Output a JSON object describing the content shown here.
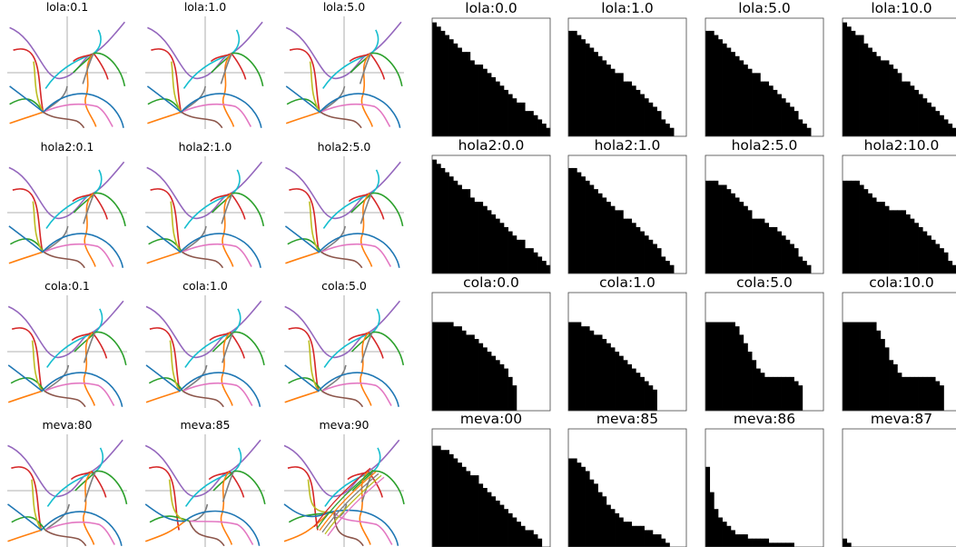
{
  "figure": {
    "left_panels_title_grid": [
      [
        "lola:0.1",
        "lola:1.0",
        "lola:5.0"
      ],
      [
        "hola2:0.1",
        "hola2:1.0",
        "hola2:5.0"
      ],
      [
        "cola:0.1",
        "cola:1.0",
        "cola:5.0"
      ],
      [
        "meva:80",
        "meva:85",
        "meva:90"
      ]
    ],
    "right_panels_title_grid": [
      [
        "lola:0.0",
        "lola:1.0",
        "lola:5.0",
        "lola:10.0"
      ],
      [
        "hola2:0.0",
        "hola2:1.0",
        "hola2:5.0",
        "hola2:10.0"
      ],
      [
        "cola:0.0",
        "cola:1.0",
        "cola:5.0",
        "cola:10.0"
      ],
      [
        "meva:00",
        "meva:85",
        "meva:86",
        "meva:87"
      ]
    ]
  },
  "chart_data": [
    {
      "type": "line",
      "panel_group": "trajectory_plots",
      "titles": [
        "lola:0.1",
        "lola:1.0",
        "lola:5.0",
        "hola2:0.1",
        "hola2:1.0",
        "hola2:5.0",
        "cola:0.1",
        "cola:1.0",
        "cola:5.0",
        "meva:80",
        "meva:85",
        "meva:90"
      ],
      "axes": "centered cross, no ticks",
      "series_colors": [
        "#9467bd",
        "#17becf",
        "#d62728",
        "#2ca02c",
        "#ff7f0e",
        "#7f7f7f",
        "#bcbd22",
        "#e377c2",
        "#1f77b4",
        "#8c564b"
      ]
    },
    {
      "type": "heatmap",
      "panel_group": "binary_region_plots",
      "grid_size": 28,
      "colors": {
        "filled": "#000000",
        "empty": "#ffffff"
      },
      "panels": [
        {
          "title": "lola:0.0",
          "profile": [
            0.97,
            0.94,
            0.9,
            0.86,
            0.82,
            0.79,
            0.76,
            0.73,
            0.7,
            0.66,
            0.62,
            0.59,
            0.56,
            0.53,
            0.5,
            0.46,
            0.43,
            0.4,
            0.36,
            0.33,
            0.3,
            0.27,
            0.23,
            0.2,
            0.17,
            0.13,
            0.1,
            0.06
          ]
        },
        {
          "title": "lola:1.0",
          "profile": [
            0.9,
            0.88,
            0.85,
            0.82,
            0.79,
            0.76,
            0.72,
            0.68,
            0.65,
            0.62,
            0.58,
            0.55,
            0.52,
            0.48,
            0.45,
            0.42,
            0.38,
            0.35,
            0.31,
            0.28,
            0.24,
            0.2,
            0.16,
            0.12,
            0.08,
            0.0,
            0.0,
            0.0
          ]
        },
        {
          "title": "lola:5.0",
          "profile": [
            0.9,
            0.88,
            0.85,
            0.82,
            0.78,
            0.75,
            0.72,
            0.68,
            0.65,
            0.62,
            0.58,
            0.55,
            0.52,
            0.48,
            0.45,
            0.42,
            0.38,
            0.35,
            0.31,
            0.28,
            0.24,
            0.2,
            0.16,
            0.12,
            0.08,
            0.0,
            0.0,
            0.0
          ]
        },
        {
          "title": "lola:10.0",
          "profile": [
            0.97,
            0.94,
            0.91,
            0.87,
            0.84,
            0.8,
            0.76,
            0.72,
            0.69,
            0.66,
            0.63,
            0.59,
            0.56,
            0.52,
            0.48,
            0.45,
            0.42,
            0.38,
            0.35,
            0.32,
            0.28,
            0.25,
            0.21,
            0.18,
            0.14,
            0.11,
            0.07,
            0.04
          ]
        },
        {
          "title": "hola2:0.0",
          "profile": [
            0.97,
            0.94,
            0.9,
            0.86,
            0.82,
            0.79,
            0.76,
            0.73,
            0.7,
            0.66,
            0.62,
            0.59,
            0.56,
            0.53,
            0.5,
            0.46,
            0.43,
            0.4,
            0.36,
            0.33,
            0.3,
            0.27,
            0.23,
            0.2,
            0.17,
            0.13,
            0.1,
            0.06
          ]
        },
        {
          "title": "hola2:1.0",
          "profile": [
            0.9,
            0.88,
            0.85,
            0.82,
            0.79,
            0.76,
            0.72,
            0.68,
            0.65,
            0.62,
            0.58,
            0.55,
            0.52,
            0.48,
            0.45,
            0.42,
            0.38,
            0.35,
            0.31,
            0.28,
            0.24,
            0.2,
            0.16,
            0.12,
            0.08,
            0.0,
            0.0,
            0.0
          ]
        },
        {
          "title": "hola2:5.0",
          "profile": [
            0.78,
            0.78,
            0.78,
            0.76,
            0.74,
            0.72,
            0.69,
            0.66,
            0.62,
            0.58,
            0.53,
            0.48,
            0.47,
            0.45,
            0.43,
            0.41,
            0.38,
            0.35,
            0.32,
            0.29,
            0.25,
            0.21,
            0.16,
            0.12,
            0.08,
            0.0,
            0.0,
            0.0
          ]
        },
        {
          "title": "hola2:10.0",
          "profile": [
            0.8,
            0.8,
            0.8,
            0.78,
            0.76,
            0.72,
            0.68,
            0.64,
            0.62,
            0.6,
            0.56,
            0.52,
            0.52,
            0.52,
            0.52,
            0.5,
            0.48,
            0.44,
            0.4,
            0.36,
            0.32,
            0.28,
            0.24,
            0.2,
            0.17,
            0.12,
            0.08,
            0.04
          ]
        },
        {
          "title": "cola:0.0",
          "profile": [
            0.75,
            0.75,
            0.75,
            0.75,
            0.74,
            0.72,
            0.7,
            0.68,
            0.66,
            0.64,
            0.61,
            0.58,
            0.55,
            0.51,
            0.47,
            0.43,
            0.39,
            0.34,
            0.28,
            0.23,
            0.0,
            0.0,
            0.0,
            0.0,
            0.0,
            0.0,
            0.0,
            0.0
          ]
        },
        {
          "title": "cola:1.0",
          "profile": [
            0.75,
            0.75,
            0.75,
            0.72,
            0.7,
            0.68,
            0.66,
            0.64,
            0.61,
            0.57,
            0.53,
            0.49,
            0.46,
            0.43,
            0.4,
            0.36,
            0.32,
            0.28,
            0.24,
            0.2,
            0.17,
            0.0,
            0.0,
            0.0,
            0.0,
            0.0,
            0.0,
            0.0
          ]
        },
        {
          "title": "cola:5.0",
          "profile": [
            0.76,
            0.76,
            0.76,
            0.76,
            0.76,
            0.76,
            0.74,
            0.7,
            0.66,
            0.58,
            0.5,
            0.42,
            0.36,
            0.32,
            0.3,
            0.3,
            0.3,
            0.3,
            0.3,
            0.3,
            0.28,
            0.25,
            0.22,
            0.0,
            0.0,
            0.0,
            0.0,
            0.0
          ]
        },
        {
          "title": "cola:10.0",
          "profile": [
            0.76,
            0.76,
            0.76,
            0.76,
            0.76,
            0.76,
            0.76,
            0.76,
            0.68,
            0.6,
            0.52,
            0.44,
            0.38,
            0.33,
            0.3,
            0.28,
            0.27,
            0.27,
            0.27,
            0.27,
            0.27,
            0.27,
            0.24,
            0.2,
            0.0,
            0.0,
            0.0,
            0.0
          ]
        },
        {
          "title": "meva:00",
          "profile": [
            0.86,
            0.85,
            0.83,
            0.81,
            0.77,
            0.74,
            0.71,
            0.68,
            0.65,
            0.62,
            0.59,
            0.55,
            0.51,
            0.47,
            0.44,
            0.41,
            0.37,
            0.33,
            0.29,
            0.25,
            0.22,
            0.19,
            0.16,
            0.13,
            0.1,
            0.07,
            0.0,
            0.0
          ]
        },
        {
          "title": "meva:85",
          "profile": [
            0.76,
            0.74,
            0.72,
            0.68,
            0.63,
            0.57,
            0.52,
            0.47,
            0.42,
            0.37,
            0.31,
            0.27,
            0.24,
            0.22,
            0.2,
            0.19,
            0.18,
            0.17,
            0.15,
            0.13,
            0.11,
            0.09,
            0.07,
            0.05,
            0.0,
            0.0,
            0.0,
            0.0
          ]
        },
        {
          "title": "meva:86",
          "profile": [
            0.68,
            0.48,
            0.31,
            0.26,
            0.22,
            0.18,
            0.14,
            0.12,
            0.1,
            0.09,
            0.08,
            0.07,
            0.07,
            0.06,
            0.06,
            0.05,
            0.05,
            0.04,
            0.04,
            0.04,
            0.04,
            0.0,
            0.0,
            0.0,
            0.0,
            0.0,
            0.0,
            0.0
          ]
        },
        {
          "title": "meva:87",
          "profile": [
            0.07,
            0.04,
            0.0,
            0.0,
            0.0,
            0.0,
            0.0,
            0.0,
            0.0,
            0.0,
            0.0,
            0.0,
            0.0,
            0.0,
            0.0,
            0.0,
            0.0,
            0.0,
            0.0,
            0.0,
            0.0,
            0.0,
            0.0,
            0.0,
            0.0,
            0.0,
            0.0,
            0.0
          ]
        }
      ]
    }
  ]
}
